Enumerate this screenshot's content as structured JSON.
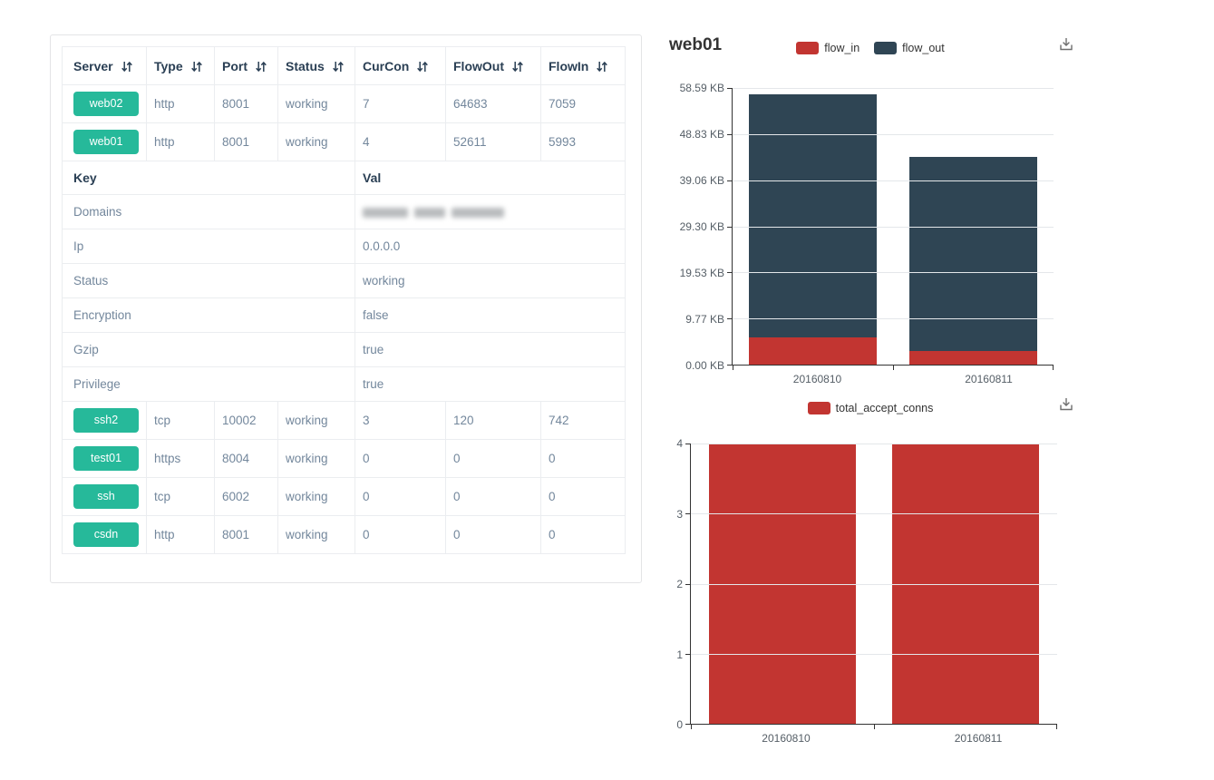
{
  "colors": {
    "accent_green": "#26B99A",
    "flow_in_red": "#c23531",
    "flow_out_dark": "#2f4554",
    "header_text": "#2A3F54",
    "body_text": "#73879C",
    "axis_label": "#555e66",
    "grid_line": "#e4e7ea"
  },
  "table": {
    "columns": [
      {
        "key": "server",
        "label": "Server",
        "sortable": true
      },
      {
        "key": "type",
        "label": "Type",
        "sortable": true
      },
      {
        "key": "port",
        "label": "Port",
        "sortable": true
      },
      {
        "key": "status",
        "label": "Status",
        "sortable": true
      },
      {
        "key": "curcon",
        "label": "CurCon",
        "sortable": true
      },
      {
        "key": "flowout",
        "label": "FlowOut",
        "sortable": true
      },
      {
        "key": "flowin",
        "label": "FlowIn",
        "sortable": true
      }
    ],
    "top_rows": [
      {
        "server": "web02",
        "type": "http",
        "port": "8001",
        "status": "working",
        "curcon": "7",
        "flowout": "64683",
        "flowin": "7059"
      },
      {
        "server": "web01",
        "type": "http",
        "port": "8001",
        "status": "working",
        "curcon": "4",
        "flowout": "52611",
        "flowin": "5993"
      }
    ],
    "detail_header": {
      "key": "Key",
      "val": "Val"
    },
    "detail_rows": [
      {
        "key": "Domains",
        "val": "",
        "redacted": true
      },
      {
        "key": "Ip",
        "val": "0.0.0.0",
        "redacted": false
      },
      {
        "key": "Status",
        "val": "working",
        "redacted": false
      },
      {
        "key": "Encryption",
        "val": "false",
        "redacted": false
      },
      {
        "key": "Gzip",
        "val": "true",
        "redacted": false
      },
      {
        "key": "Privilege",
        "val": "true",
        "redacted": false
      }
    ],
    "bottom_rows": [
      {
        "server": "ssh2",
        "type": "tcp",
        "port": "10002",
        "status": "working",
        "curcon": "3",
        "flowout": "120",
        "flowin": "742"
      },
      {
        "server": "test01",
        "type": "https",
        "port": "8004",
        "status": "working",
        "curcon": "0",
        "flowout": "0",
        "flowin": "0"
      },
      {
        "server": "ssh",
        "type": "tcp",
        "port": "6002",
        "status": "working",
        "curcon": "0",
        "flowout": "0",
        "flowin": "0"
      },
      {
        "server": "csdn",
        "type": "http",
        "port": "8001",
        "status": "working",
        "curcon": "0",
        "flowout": "0",
        "flowin": "0"
      }
    ]
  },
  "chart_data": [
    {
      "type": "bar",
      "stacked": true,
      "title": "web01",
      "categories": [
        "20160810",
        "20160811"
      ],
      "series": [
        {
          "name": "flow_in",
          "color": "#c23531",
          "values": [
            5993,
            2900
          ]
        },
        {
          "name": "flow_out",
          "color": "#2f4554",
          "values": [
            52611,
            42100
          ]
        }
      ],
      "value_unit": "bytes",
      "axis_format": "KB",
      "ylim": [
        0,
        60000
      ],
      "ytick_values": [
        0,
        10000,
        20000,
        30000,
        40000,
        50000,
        60000
      ],
      "ytick_labels": [
        "0.00 KB",
        "9.77 KB",
        "19.53 KB",
        "29.30 KB",
        "39.06 KB",
        "48.83 KB",
        "58.59 KB"
      ],
      "xlabel": "",
      "ylabel": "",
      "grid": true,
      "legend_position": "top-center",
      "toolbox": [
        "save-as-image"
      ]
    },
    {
      "type": "bar",
      "stacked": false,
      "title": "",
      "categories": [
        "20160810",
        "20160811"
      ],
      "series": [
        {
          "name": "total_accept_conns",
          "color": "#c23531",
          "values": [
            4,
            4
          ]
        }
      ],
      "ylim": [
        0,
        4
      ],
      "ytick_values": [
        0,
        1,
        2,
        3,
        4
      ],
      "ytick_labels": [
        "0",
        "1",
        "2",
        "3",
        "4"
      ],
      "xlabel": "",
      "ylabel": "",
      "grid": true,
      "legend_position": "top-center",
      "toolbox": [
        "save-as-image"
      ]
    }
  ]
}
